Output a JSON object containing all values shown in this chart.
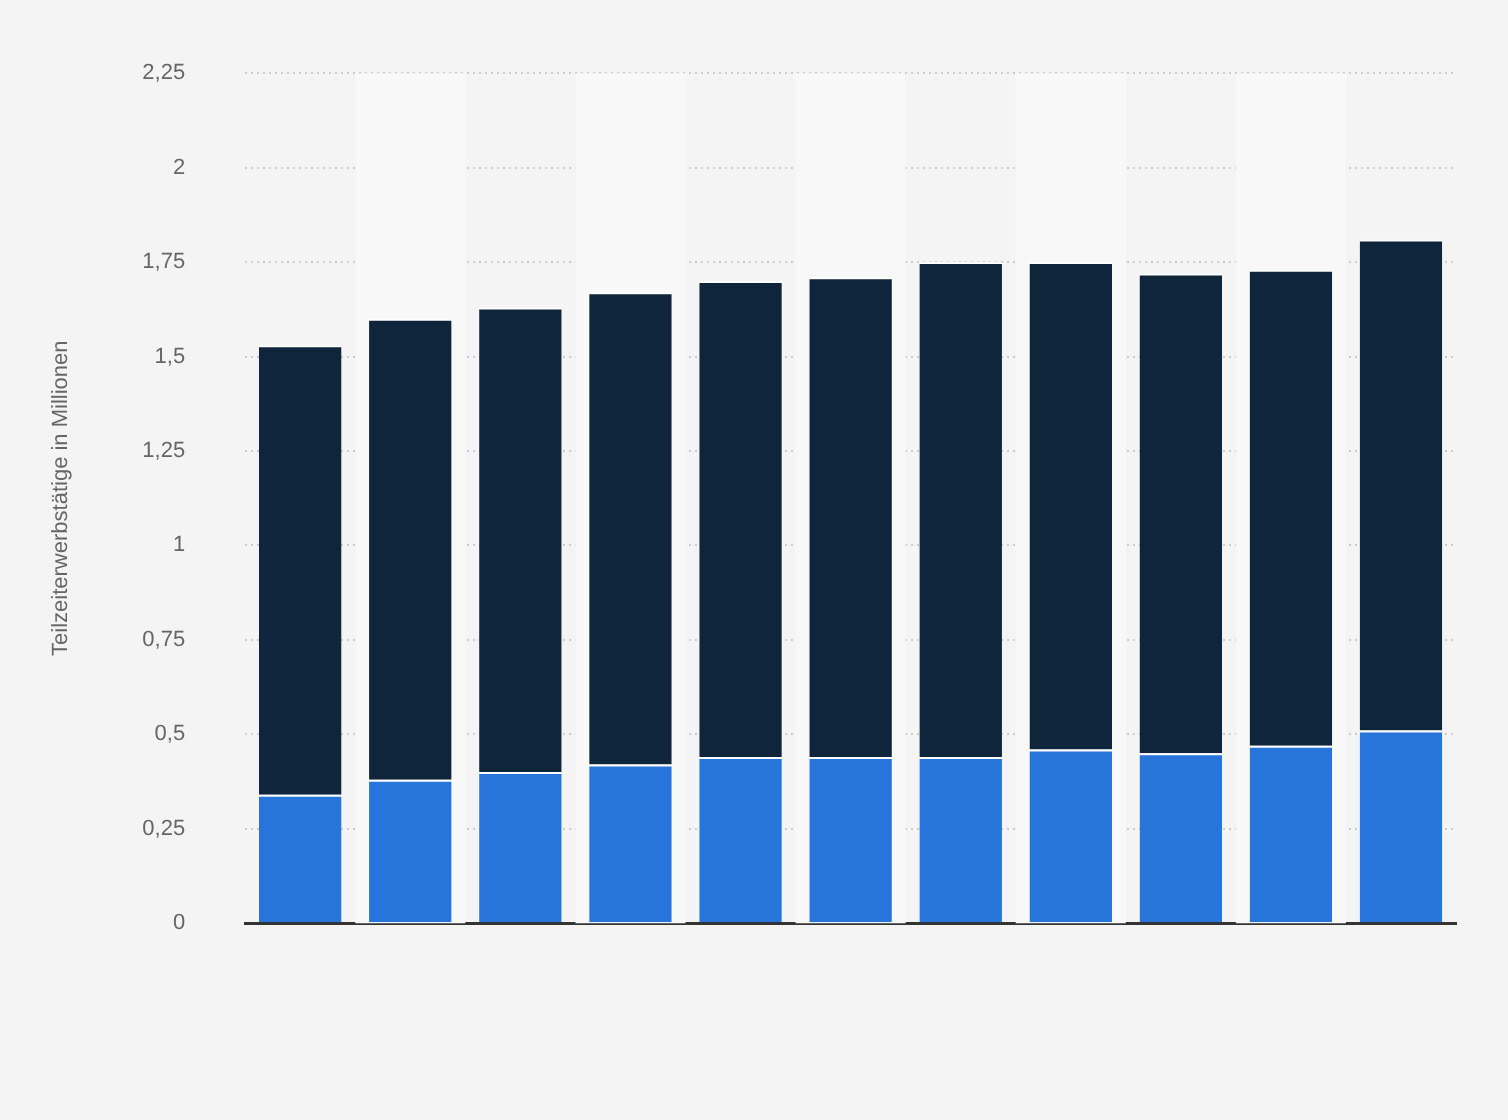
{
  "chart_data": {
    "type": "bar",
    "stacked": true,
    "ylabel": "Teilzeiterwerbstätige in Millionen",
    "categories": [
      null,
      null,
      null,
      null,
      null,
      null,
      null,
      null,
      null,
      null,
      null
    ],
    "series": [
      {
        "color": "#2775db",
        "values": [
          0.34,
          0.38,
          0.4,
          0.42,
          0.44,
          0.44,
          0.44,
          0.46,
          0.45,
          0.47,
          0.51
        ]
      },
      {
        "color": "#0f253c",
        "values": [
          1.19,
          1.22,
          1.23,
          1.25,
          1.26,
          1.27,
          1.31,
          1.29,
          1.27,
          1.26,
          1.3
        ]
      }
    ],
    "ylim": [
      0,
      2.25
    ],
    "yticks": [
      0,
      {
        "value": 0.25,
        "label": "0,25"
      },
      {
        "value": 0.5,
        "label": "0,5"
      },
      {
        "value": 0.75,
        "label": "0,75"
      },
      1,
      {
        "value": 1.25,
        "label": "1,25"
      },
      {
        "value": 1.5,
        "label": "1,5"
      },
      {
        "value": 1.75,
        "label": "1,75"
      },
      2,
      {
        "value": 2.25,
        "label": "2,25"
      }
    ],
    "grid": "y",
    "legend": false
  }
}
